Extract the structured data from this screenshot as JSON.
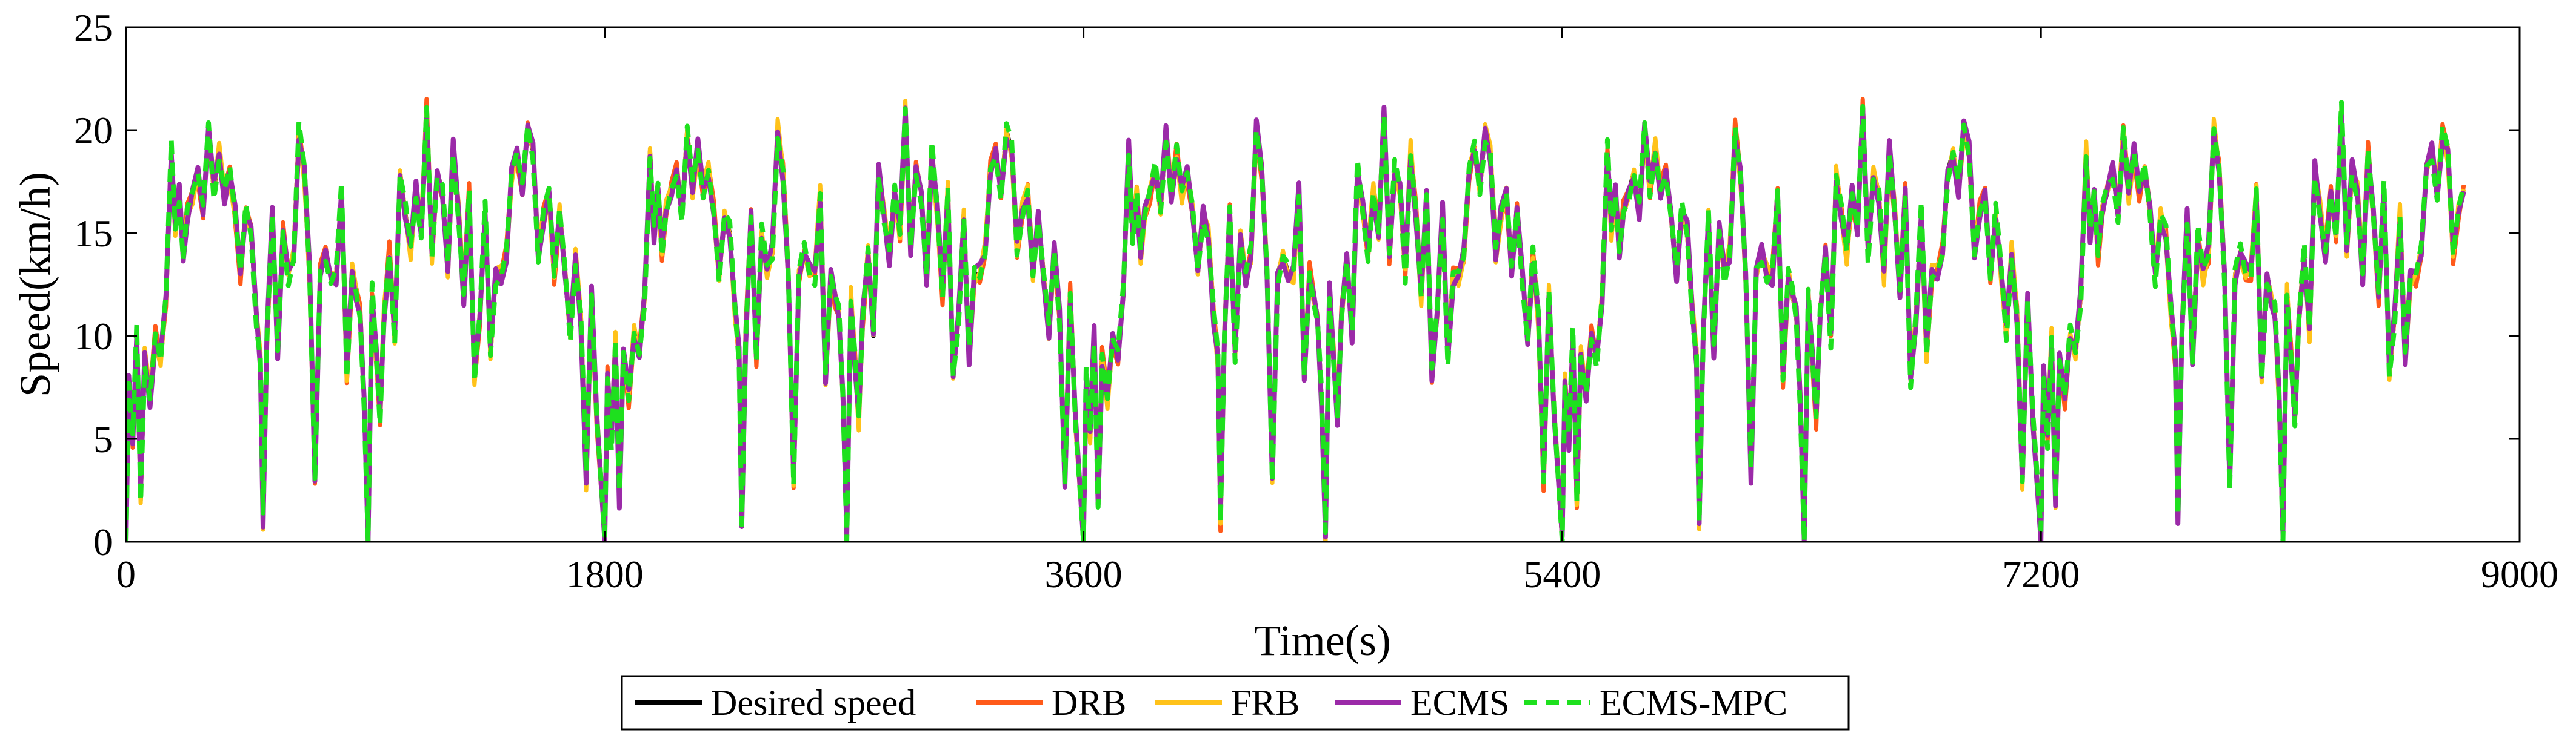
{
  "chart_data": {
    "type": "line",
    "title": "",
    "xlabel": "Time(s)",
    "ylabel": "Speed(km/h)",
    "xlim": [
      0,
      9000
    ],
    "ylim": [
      0,
      25
    ],
    "xticks": [
      0,
      1800,
      3600,
      5400,
      7200,
      9000
    ],
    "yticks": [
      0,
      5,
      10,
      15,
      20,
      25
    ],
    "xtick_labels": [
      "0",
      "1800",
      "3600",
      "5400",
      "7200",
      "9000"
    ],
    "ytick_labels": [
      "0",
      "5",
      "10",
      "15",
      "20",
      "25"
    ],
    "grid": false,
    "legend_position": "bottom-center",
    "cycle_period_s": 1800,
    "series": [
      {
        "name": "Desired speed",
        "color": "#000000",
        "dash": "solid"
      },
      {
        "name": "DRB",
        "color": "#ff5a1a",
        "dash": "solid"
      },
      {
        "name": "FRB",
        "color": "#ffc21a",
        "dash": "solid"
      },
      {
        "name": "ECMS",
        "color": "#9b2aa8",
        "dash": "solid"
      },
      {
        "name": "ECMS-MPC",
        "color": "#1ee01e",
        "dash": "dashed"
      }
    ],
    "desired_speed_cycle": {
      "t": [
        0,
        10,
        25,
        40,
        55,
        70,
        90,
        110,
        130,
        150,
        170,
        185,
        200,
        215,
        230,
        250,
        270,
        290,
        310,
        330,
        350,
        370,
        390,
        410,
        430,
        450,
        470,
        490,
        505,
        515,
        530,
        550,
        570,
        590,
        610,
        630,
        650,
        670,
        690,
        710,
        730,
        750,
        770,
        790,
        810,
        830,
        850,
        865,
        880,
        895,
        910,
        925,
        940,
        955,
        970,
        990,
        1010,
        1030,
        1050,
        1070,
        1090,
        1110,
        1130,
        1150,
        1170,
        1190,
        1210,
        1230,
        1250,
        1270,
        1290,
        1310,
        1330,
        1350,
        1370,
        1390,
        1410,
        1430,
        1450,
        1470,
        1490,
        1510,
        1530,
        1550,
        1570,
        1590,
        1610,
        1630,
        1650,
        1670,
        1690,
        1710,
        1730,
        1750,
        1770,
        1800
      ],
      "v": [
        0,
        8,
        5,
        10,
        2,
        9,
        7,
        10,
        9,
        12,
        19,
        15,
        17,
        14,
        16,
        17,
        18,
        16,
        20,
        17,
        19,
        17,
        18,
        16,
        13,
        16,
        15,
        11,
        9,
        1,
        10,
        16,
        9,
        15,
        13,
        14,
        20,
        18,
        13,
        3,
        13,
        14,
        13,
        13,
        17,
        8,
        13,
        12,
        11,
        7,
        0,
        12,
        9,
        6,
        11,
        14,
        10,
        18,
        16,
        14,
        17,
        15,
        21,
        14,
        18,
        17,
        13,
        19,
        16,
        12,
        17,
        8,
        11,
        16,
        9,
        13,
        13,
        14,
        18,
        19,
        17,
        20,
        19,
        14,
        16,
        17,
        13,
        16,
        13,
        10,
        14,
        11,
        3,
        12,
        6,
        0
      ]
    }
  }
}
